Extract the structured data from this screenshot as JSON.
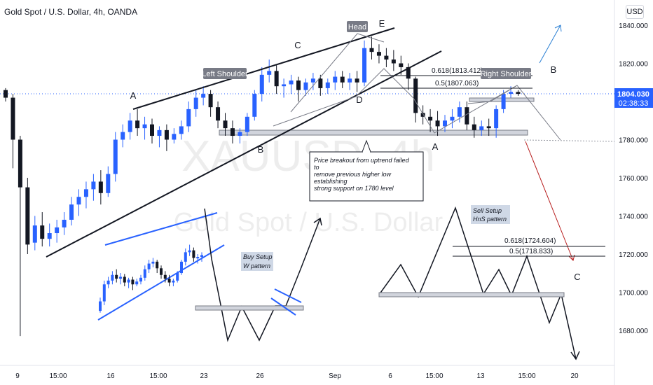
{
  "header": {
    "symbol_title": "Gold Spot / U.S. Dollar, 4h, OANDA",
    "currency_button": "USD"
  },
  "watermark": {
    "ticker": "XAUUSD, 4h",
    "description": "Gold Spot / U.S. Dollar"
  },
  "price_readout": {
    "price": "1804.030",
    "countdown": "02:38:33"
  },
  "colors": {
    "up": "#2962ff",
    "down": "#131722",
    "accent_blue": "#2962ff",
    "trend_arrow": "#2a7fd4",
    "projection_red": "#b71c1c",
    "label_box": "#787b86",
    "note_bg": "#cfd8e6"
  },
  "chart_data": {
    "type": "candlestick",
    "symbol": "XAUUSD",
    "timeframe": "4h",
    "ylim": [
      1658,
      1850
    ],
    "y_ticks": [
      "1840.000",
      "1820.000",
      "1800.000",
      "1780.000",
      "1760.000",
      "1740.000",
      "1720.000",
      "1700.000",
      "1680.000"
    ],
    "x_ticks": [
      "9",
      "15:00",
      "16",
      "15:00",
      "23",
      "26",
      "Sep",
      "6",
      "15:00",
      "13",
      "15:00",
      "20"
    ],
    "last_price": 1804.03,
    "candles": [
      {
        "t": 0,
        "o": 1806,
        "h": 1807,
        "c": 1802,
        "l": 1800
      },
      {
        "t": 1,
        "o": 1802,
        "h": 1804,
        "c": 1780,
        "l": 1765
      },
      {
        "t": 2,
        "o": 1780,
        "h": 1782,
        "c": 1755,
        "l": 1677
      },
      {
        "t": 3,
        "o": 1755,
        "h": 1760,
        "c": 1725,
        "l": 1720
      },
      {
        "t": 4,
        "o": 1726,
        "h": 1740,
        "c": 1735,
        "l": 1722
      },
      {
        "t": 5,
        "o": 1735,
        "h": 1742,
        "c": 1728,
        "l": 1724
      },
      {
        "t": 6,
        "o": 1728,
        "h": 1736,
        "c": 1731,
        "l": 1724
      },
      {
        "t": 7,
        "o": 1731,
        "h": 1738,
        "c": 1734,
        "l": 1726
      },
      {
        "t": 8,
        "o": 1734,
        "h": 1742,
        "c": 1738,
        "l": 1730
      },
      {
        "t": 9,
        "o": 1738,
        "h": 1750,
        "c": 1746,
        "l": 1735
      },
      {
        "t": 10,
        "o": 1746,
        "h": 1754,
        "c": 1750,
        "l": 1740
      },
      {
        "t": 11,
        "o": 1750,
        "h": 1758,
        "c": 1754,
        "l": 1744
      },
      {
        "t": 12,
        "o": 1754,
        "h": 1762,
        "c": 1758,
        "l": 1748
      },
      {
        "t": 13,
        "o": 1758,
        "h": 1764,
        "c": 1752,
        "l": 1746
      },
      {
        "t": 14,
        "o": 1752,
        "h": 1766,
        "c": 1762,
        "l": 1750
      },
      {
        "t": 15,
        "o": 1762,
        "h": 1784,
        "c": 1780,
        "l": 1758
      },
      {
        "t": 16,
        "o": 1780,
        "h": 1788,
        "c": 1784,
        "l": 1776
      },
      {
        "t": 17,
        "o": 1784,
        "h": 1794,
        "c": 1790,
        "l": 1780
      },
      {
        "t": 18,
        "o": 1790,
        "h": 1796,
        "c": 1786,
        "l": 1782
      },
      {
        "t": 19,
        "o": 1786,
        "h": 1792,
        "c": 1788,
        "l": 1780
      },
      {
        "t": 20,
        "o": 1788,
        "h": 1791,
        "c": 1782,
        "l": 1778
      },
      {
        "t": 21,
        "o": 1782,
        "h": 1787,
        "c": 1785,
        "l": 1776
      },
      {
        "t": 22,
        "o": 1785,
        "h": 1788,
        "c": 1780,
        "l": 1774
      },
      {
        "t": 23,
        "o": 1780,
        "h": 1786,
        "c": 1783,
        "l": 1778
      },
      {
        "t": 24,
        "o": 1783,
        "h": 1790,
        "c": 1787,
        "l": 1780
      },
      {
        "t": 25,
        "o": 1787,
        "h": 1800,
        "c": 1796,
        "l": 1784
      },
      {
        "t": 26,
        "o": 1796,
        "h": 1806,
        "c": 1802,
        "l": 1792
      },
      {
        "t": 27,
        "o": 1802,
        "h": 1808,
        "c": 1804,
        "l": 1798
      },
      {
        "t": 28,
        "o": 1804,
        "h": 1806,
        "c": 1797,
        "l": 1792
      },
      {
        "t": 29,
        "o": 1797,
        "h": 1800,
        "c": 1790,
        "l": 1786
      },
      {
        "t": 30,
        "o": 1790,
        "h": 1794,
        "c": 1786,
        "l": 1782
      },
      {
        "t": 31,
        "o": 1786,
        "h": 1790,
        "c": 1782,
        "l": 1778
      },
      {
        "t": 32,
        "o": 1782,
        "h": 1786,
        "c": 1784,
        "l": 1778
      },
      {
        "t": 33,
        "o": 1784,
        "h": 1794,
        "c": 1792,
        "l": 1782
      },
      {
        "t": 34,
        "o": 1792,
        "h": 1806,
        "c": 1804,
        "l": 1790
      },
      {
        "t": 35,
        "o": 1804,
        "h": 1818,
        "c": 1814,
        "l": 1800
      },
      {
        "t": 36,
        "o": 1814,
        "h": 1822,
        "c": 1816,
        "l": 1810
      },
      {
        "t": 37,
        "o": 1816,
        "h": 1819,
        "c": 1808,
        "l": 1804
      },
      {
        "t": 38,
        "o": 1808,
        "h": 1812,
        "c": 1809,
        "l": 1802
      },
      {
        "t": 39,
        "o": 1809,
        "h": 1814,
        "c": 1811,
        "l": 1804
      },
      {
        "t": 40,
        "o": 1811,
        "h": 1813,
        "c": 1806,
        "l": 1800
      },
      {
        "t": 41,
        "o": 1806,
        "h": 1812,
        "c": 1810,
        "l": 1803
      },
      {
        "t": 42,
        "o": 1810,
        "h": 1815,
        "c": 1812,
        "l": 1806
      },
      {
        "t": 43,
        "o": 1812,
        "h": 1814,
        "c": 1807,
        "l": 1803
      },
      {
        "t": 44,
        "o": 1807,
        "h": 1812,
        "c": 1810,
        "l": 1804
      },
      {
        "t": 45,
        "o": 1810,
        "h": 1816,
        "c": 1813,
        "l": 1806
      },
      {
        "t": 46,
        "o": 1813,
        "h": 1816,
        "c": 1810,
        "l": 1807
      },
      {
        "t": 47,
        "o": 1810,
        "h": 1815,
        "c": 1812,
        "l": 1806
      },
      {
        "t": 48,
        "o": 1812,
        "h": 1816,
        "c": 1810,
        "l": 1805
      },
      {
        "t": 49,
        "o": 1810,
        "h": 1832,
        "c": 1828,
        "l": 1808
      },
      {
        "t": 50,
        "o": 1828,
        "h": 1834,
        "c": 1826,
        "l": 1822
      },
      {
        "t": 51,
        "o": 1826,
        "h": 1830,
        "c": 1824,
        "l": 1820
      },
      {
        "t": 52,
        "o": 1824,
        "h": 1828,
        "c": 1822,
        "l": 1818
      },
      {
        "t": 53,
        "o": 1822,
        "h": 1827,
        "c": 1820,
        "l": 1816
      },
      {
        "t": 54,
        "o": 1820,
        "h": 1824,
        "c": 1818,
        "l": 1814
      },
      {
        "t": 55,
        "o": 1818,
        "h": 1820,
        "c": 1812,
        "l": 1806
      },
      {
        "t": 56,
        "o": 1812,
        "h": 1813,
        "c": 1794,
        "l": 1789
      },
      {
        "t": 57,
        "o": 1794,
        "h": 1798,
        "c": 1792,
        "l": 1788
      },
      {
        "t": 58,
        "o": 1792,
        "h": 1796,
        "c": 1790,
        "l": 1784
      },
      {
        "t": 59,
        "o": 1790,
        "h": 1795,
        "c": 1787,
        "l": 1782
      },
      {
        "t": 60,
        "o": 1787,
        "h": 1793,
        "c": 1790,
        "l": 1784
      },
      {
        "t": 61,
        "o": 1790,
        "h": 1796,
        "c": 1792,
        "l": 1786
      },
      {
        "t": 62,
        "o": 1792,
        "h": 1800,
        "c": 1797,
        "l": 1789
      },
      {
        "t": 63,
        "o": 1797,
        "h": 1800,
        "c": 1788,
        "l": 1785
      },
      {
        "t": 64,
        "o": 1788,
        "h": 1792,
        "c": 1785,
        "l": 1781
      },
      {
        "t": 65,
        "o": 1785,
        "h": 1790,
        "c": 1787,
        "l": 1782
      },
      {
        "t": 66,
        "o": 1787,
        "h": 1791,
        "c": 1786,
        "l": 1782
      },
      {
        "t": 67,
        "o": 1786,
        "h": 1798,
        "c": 1796,
        "l": 1781
      },
      {
        "t": 68,
        "o": 1796,
        "h": 1806,
        "c": 1804,
        "l": 1794
      },
      {
        "t": 69,
        "o": 1804,
        "h": 1808,
        "c": 1805,
        "l": 1802
      },
      {
        "t": 70,
        "o": 1805,
        "h": 1806,
        "c": 1804,
        "l": 1803
      }
    ],
    "annotations": {
      "wave_labels": [
        "A",
        "B",
        "C",
        "D",
        "E",
        "A",
        "B",
        "C"
      ],
      "pattern_labels": [
        "Left Shoulder",
        "Head",
        "Right Shoulder"
      ],
      "fib_upper": [
        "0.618(1813.412)",
        "0.5(1807.063)"
      ],
      "fib_lower": [
        "0.618(1724.604)",
        "0.5(1718.833)"
      ],
      "note_lines": [
        "Price breakout from uptrend failed",
        "to",
        "remove previous higher low",
        "establishing",
        "strong support on 1780 level"
      ],
      "buy_setup": [
        "Buy Setup",
        "W pattern"
      ],
      "sell_setup": [
        "Sell Setup",
        "HnS pattern"
      ]
    }
  }
}
